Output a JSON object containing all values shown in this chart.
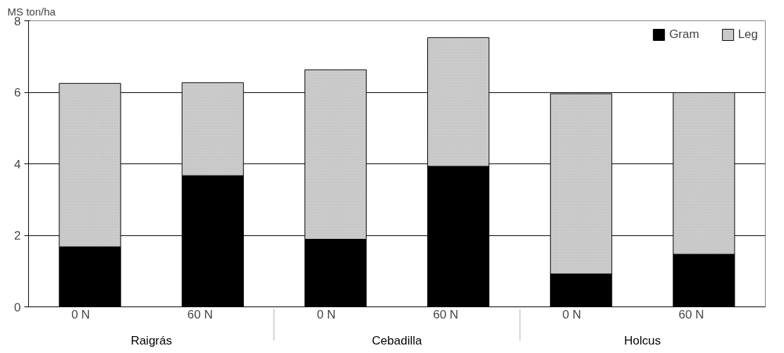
{
  "chart_data": {
    "type": "bar",
    "stacked": true,
    "ylabel": "MS ton/ha",
    "categories": [
      "0 N",
      "60 N",
      "0 N",
      "60 N",
      "0 N",
      "60 N"
    ],
    "annotations": [
      "Raigrás",
      "Cebadilla",
      "Holcus"
    ],
    "series": [
      {
        "name": "Gram",
        "color": "#000000",
        "values": [
          1.68,
          3.67,
          1.89,
          3.93,
          0.92,
          1.47
        ]
      },
      {
        "name": "Leg",
        "color": "#d9d9d9",
        "values": [
          4.57,
          2.6,
          4.74,
          3.6,
          5.04,
          4.52
        ]
      }
    ],
    "ylim": [
      0,
      8
    ],
    "yticks": [
      0,
      2,
      4,
      6,
      8
    ],
    "grid": "y",
    "legend": "top right"
  }
}
